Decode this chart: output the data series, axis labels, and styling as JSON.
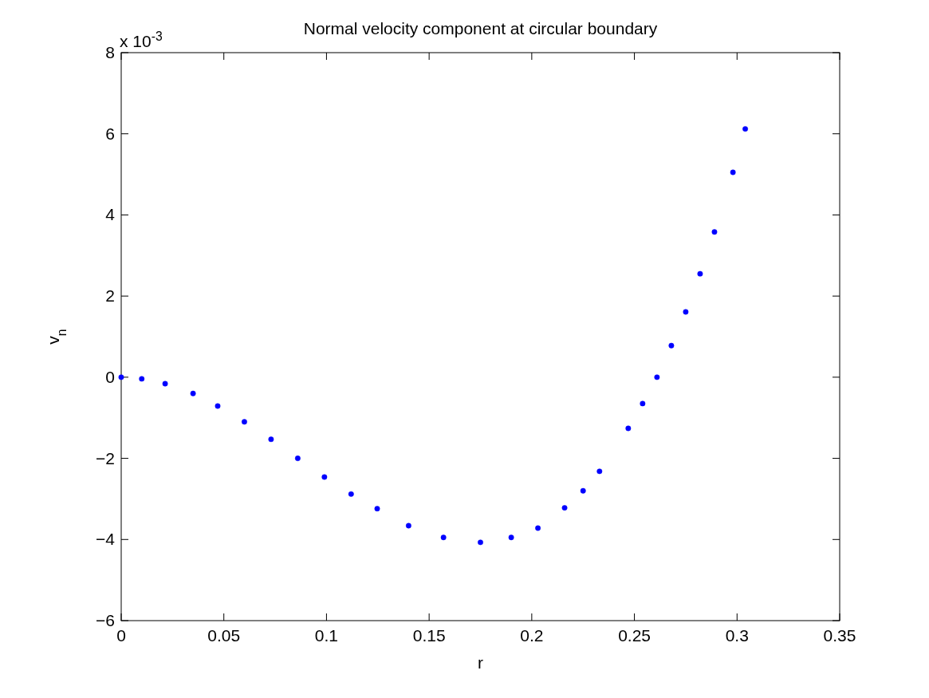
{
  "chart_data": {
    "type": "scatter",
    "title": "Normal velocity component at circular boundary",
    "xlabel": "r",
    "ylabel": "v$_{n}$",
    "annotations": [
      "x 10$^{-3}$"
    ],
    "marker": "circle",
    "x": [
      0,
      0.01,
      0.0214,
      0.035,
      0.047,
      0.06,
      0.073,
      0.086,
      0.099,
      0.112,
      0.1247,
      0.14,
      0.157,
      0.175,
      0.19,
      0.203,
      0.216,
      0.225,
      0.233,
      0.247,
      0.254,
      0.261,
      0.268,
      0.275,
      0.282,
      0.289,
      0.298,
      0.304
    ],
    "series": [
      {
        "color": "#0000ff",
        "values": [
          0,
          -0.04,
          -0.16,
          -0.4,
          -0.71,
          -1.1,
          -1.53,
          -2.0,
          -2.46,
          -2.88,
          -3.24,
          -3.66,
          -3.95,
          -4.07,
          -3.95,
          -3.72,
          -3.22,
          -2.8,
          -2.32,
          -1.26,
          -0.65,
          0,
          0.78,
          1.61,
          2.55,
          3.58,
          5.05,
          6.12
        ]
      }
    ],
    "xlim": [
      0,
      0.35
    ],
    "xticks": [
      0,
      0.05,
      0.1,
      0.15,
      0.2,
      0.25,
      0.3,
      0.35
    ],
    "ylim": [
      -6,
      8
    ],
    "yticks": [
      {
        "value": -6,
        "label": "−6"
      },
      {
        "value": -4,
        "label": "−4"
      },
      {
        "value": -2,
        "label": "−2"
      },
      0,
      2,
      4,
      6,
      8
    ]
  }
}
